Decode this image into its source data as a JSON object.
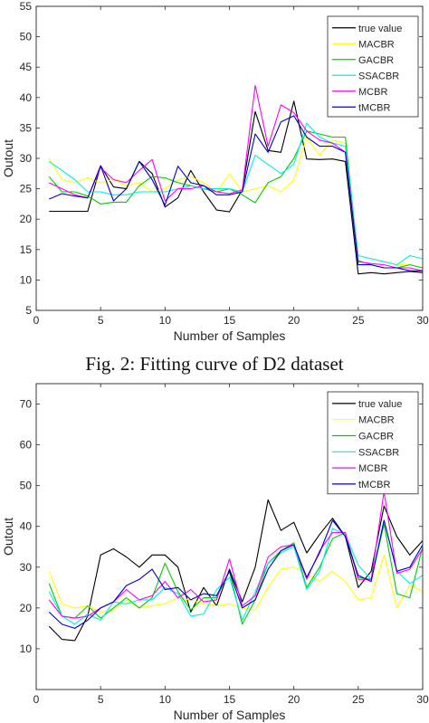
{
  "caption": "Fig. 2: Fitting curve of D2 dataset",
  "chart_data": [
    {
      "type": "line",
      "xlabel": "Number of Samples",
      "ylabel": "Outout",
      "xlim": [
        0,
        30
      ],
      "ylim": [
        5,
        55
      ],
      "xticks": [
        0,
        5,
        10,
        15,
        20,
        25,
        30
      ],
      "yticks": [
        5,
        10,
        15,
        20,
        25,
        30,
        35,
        40,
        45,
        50,
        55
      ],
      "legend_position": "top-right",
      "grid": false,
      "x": [
        1,
        2,
        3,
        4,
        5,
        6,
        7,
        8,
        9,
        10,
        11,
        12,
        13,
        14,
        15,
        16,
        17,
        18,
        19,
        20,
        21,
        22,
        23,
        24,
        25,
        26,
        27,
        28,
        29,
        30
      ],
      "series": [
        {
          "name": "true value",
          "color": "#000000",
          "values": [
            21.3,
            21.3,
            21.3,
            21.3,
            28.8,
            25.3,
            25.0,
            29.5,
            27.5,
            22.0,
            23.5,
            28.0,
            24.5,
            21.5,
            21.2,
            24.8,
            37.7,
            31.3,
            31.0,
            39.4,
            29.9,
            29.8,
            29.9,
            29.5,
            11.0,
            11.2,
            11.0,
            11.2,
            11.4,
            11.2
          ]
        },
        {
          "name": "MACBR",
          "color": "#ffff00",
          "values": [
            30.0,
            26.5,
            26.0,
            26.8,
            26.0,
            26.5,
            25.5,
            26.0,
            24.5,
            25.0,
            26.5,
            27.0,
            26.0,
            24.5,
            27.5,
            24.5,
            25.0,
            25.5,
            24.5,
            26.5,
            33.5,
            30.5,
            33.0,
            32.5,
            14.0,
            13.5,
            13.0,
            12.5,
            12.5,
            12.0
          ]
        },
        {
          "name": "GACBR",
          "color": "#00cc00",
          "values": [
            27.0,
            24.5,
            24.5,
            23.8,
            22.5,
            22.8,
            22.8,
            25.5,
            27.0,
            26.8,
            26.0,
            25.5,
            25.0,
            24.5,
            25.0,
            24.0,
            22.7,
            26.0,
            27.0,
            30.0,
            34.5,
            34.0,
            33.5,
            33.5,
            13.2,
            12.5,
            12.0,
            12.0,
            12.5,
            12.0
          ]
        },
        {
          "name": "SSACBR",
          "color": "#00eeee",
          "values": [
            29.5,
            28.0,
            26.5,
            24.5,
            24.5,
            24.0,
            24.0,
            24.5,
            24.5,
            24.5,
            25.0,
            25.5,
            25.0,
            25.0,
            25.0,
            24.5,
            30.5,
            29.0,
            27.5,
            29.0,
            35.8,
            33.5,
            32.5,
            32.0,
            14.0,
            13.5,
            13.0,
            12.5,
            14.0,
            13.5
          ]
        },
        {
          "name": "MCBR",
          "color": "#ff00ff",
          "values": [
            26.0,
            25.0,
            24.0,
            23.5,
            28.5,
            26.5,
            26.0,
            28.0,
            29.8,
            23.0,
            25.0,
            25.0,
            25.5,
            24.5,
            24.2,
            24.8,
            42.0,
            32.0,
            38.8,
            37.5,
            34.5,
            33.0,
            32.5,
            31.0,
            13.0,
            12.7,
            12.5,
            12.0,
            12.0,
            11.5
          ]
        },
        {
          "name": "tMCBR",
          "color": "#0000cc",
          "values": [
            23.3,
            24.2,
            23.8,
            23.5,
            28.8,
            23.0,
            25.0,
            29.5,
            26.5,
            22.3,
            28.7,
            26.0,
            25.5,
            24.0,
            24.0,
            24.5,
            34.0,
            31.0,
            36.0,
            37.0,
            33.5,
            32.0,
            32.0,
            31.0,
            12.5,
            12.5,
            12.0,
            12.0,
            11.5,
            11.5
          ]
        }
      ]
    },
    {
      "type": "line",
      "xlabel": "Number of Samples",
      "ylabel": "Outout",
      "xlim": [
        0,
        30
      ],
      "ylim": [
        0,
        75
      ],
      "xticks": [
        0,
        5,
        10,
        15,
        20,
        25,
        30
      ],
      "yticks": [
        10,
        20,
        30,
        40,
        50,
        60,
        70
      ],
      "legend_position": "top-right",
      "grid": false,
      "x": [
        1,
        2,
        3,
        4,
        5,
        6,
        7,
        8,
        9,
        10,
        11,
        12,
        13,
        14,
        15,
        16,
        17,
        18,
        19,
        20,
        21,
        22,
        23,
        24,
        25,
        26,
        27,
        28,
        29,
        30
      ],
      "series": [
        {
          "name": "true value",
          "color": "#000000",
          "values": [
            15.5,
            12.3,
            12.0,
            18.0,
            33.0,
            34.5,
            32.5,
            30.0,
            33.0,
            33.0,
            30.0,
            19.0,
            25.0,
            20.5,
            29.5,
            21.5,
            30.0,
            46.5,
            39.0,
            41.0,
            33.5,
            38.0,
            42.0,
            37.5,
            25.0,
            29.0,
            45.0,
            37.5,
            33.0,
            36.5
          ]
        },
        {
          "name": "MACBR",
          "color": "#ffff00",
          "values": [
            29.0,
            21.0,
            20.0,
            20.5,
            19.0,
            19.5,
            22.0,
            20.0,
            20.5,
            21.0,
            22.5,
            22.0,
            21.0,
            20.5,
            21.0,
            20.0,
            19.5,
            25.0,
            29.5,
            30.0,
            28.5,
            26.5,
            29.0,
            26.5,
            22.0,
            22.5,
            33.0,
            20.0,
            25.5,
            24.0
          ]
        },
        {
          "name": "GACBR",
          "color": "#00cc00",
          "values": [
            26.0,
            18.0,
            17.5,
            20.5,
            17.5,
            20.0,
            22.5,
            20.0,
            22.5,
            31.0,
            24.0,
            19.5,
            22.5,
            22.5,
            29.0,
            16.0,
            22.0,
            31.0,
            34.0,
            36.0,
            25.0,
            30.0,
            37.0,
            38.5,
            27.5,
            27.0,
            40.5,
            23.5,
            22.5,
            35.0
          ]
        },
        {
          "name": "SSACBR",
          "color": "#00eeee",
          "values": [
            24.0,
            18.0,
            16.0,
            18.5,
            17.0,
            21.5,
            21.0,
            22.0,
            22.0,
            25.0,
            23.5,
            18.0,
            18.5,
            24.5,
            27.5,
            17.0,
            24.0,
            31.0,
            33.5,
            35.0,
            24.5,
            29.0,
            39.5,
            38.0,
            30.5,
            27.0,
            41.5,
            29.0,
            26.0,
            28.0
          ]
        },
        {
          "name": "MCBR",
          "color": "#ff00ff",
          "values": [
            22.0,
            18.0,
            17.5,
            18.0,
            20.0,
            21.5,
            24.5,
            22.0,
            23.0,
            26.5,
            22.5,
            24.5,
            21.5,
            22.0,
            32.0,
            20.5,
            23.0,
            32.5,
            35.0,
            35.5,
            27.0,
            34.0,
            38.5,
            38.5,
            27.0,
            27.0,
            48.5,
            28.5,
            29.5,
            34.5
          ]
        },
        {
          "name": "tMCBR",
          "color": "#0000cc",
          "values": [
            19.0,
            16.0,
            15.0,
            17.0,
            20.0,
            21.5,
            25.5,
            27.0,
            29.5,
            24.5,
            25.0,
            22.0,
            23.5,
            23.0,
            29.0,
            20.0,
            22.0,
            29.5,
            34.0,
            35.5,
            27.5,
            33.5,
            41.5,
            37.5,
            28.0,
            26.5,
            41.5,
            29.0,
            30.0,
            35.5
          ]
        }
      ]
    }
  ]
}
